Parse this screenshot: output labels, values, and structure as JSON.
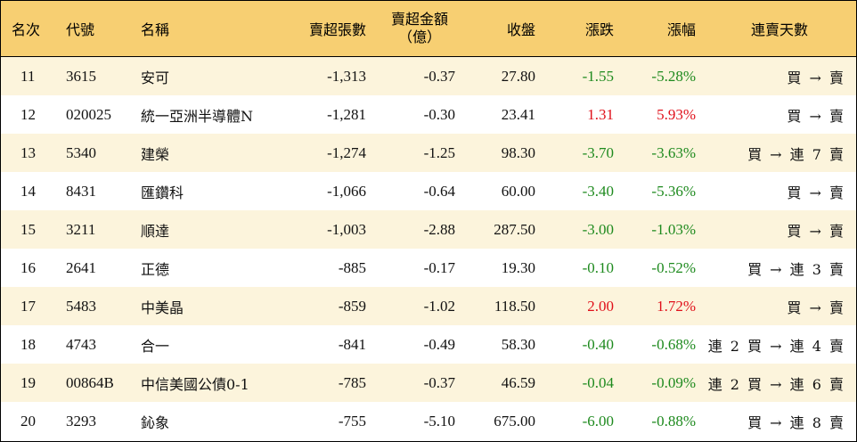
{
  "colors": {
    "header_bg": "#f7cf72",
    "odd_row_bg": "#fcf4dc",
    "even_row_bg": "#ffffff",
    "down": "#1e8a1e",
    "up": "#e0101a"
  },
  "header": {
    "rank": "名次",
    "code": "代號",
    "name": "名稱",
    "sell_lots": "賣超張數",
    "sell_amount_1": "賣超金額",
    "sell_amount_2": "（億）",
    "close": "收盤",
    "change": "漲跌",
    "pct": "漲幅",
    "days": "連賣天數"
  },
  "rows": [
    {
      "rank": "11",
      "code": "3615",
      "name": "安可",
      "sell_lots": "-1,313",
      "sell_amount": "-0.37",
      "close": "27.80",
      "change": "-1.55",
      "pct": "-5.28%",
      "days": "買 → 賣",
      "dir": "neg"
    },
    {
      "rank": "12",
      "code": "020025",
      "name": "統一亞洲半導體N",
      "sell_lots": "-1,281",
      "sell_amount": "-0.30",
      "close": "23.41",
      "change": "1.31",
      "pct": "5.93%",
      "days": "買 → 賣",
      "dir": "pos"
    },
    {
      "rank": "13",
      "code": "5340",
      "name": "建榮",
      "sell_lots": "-1,274",
      "sell_amount": "-1.25",
      "close": "98.30",
      "change": "-3.70",
      "pct": "-3.63%",
      "days": "買 → 連 7 賣",
      "dir": "neg"
    },
    {
      "rank": "14",
      "code": "8431",
      "name": "匯鑽科",
      "sell_lots": "-1,066",
      "sell_amount": "-0.64",
      "close": "60.00",
      "change": "-3.40",
      "pct": "-5.36%",
      "days": "買 → 賣",
      "dir": "neg"
    },
    {
      "rank": "15",
      "code": "3211",
      "name": "順達",
      "sell_lots": "-1,003",
      "sell_amount": "-2.88",
      "close": "287.50",
      "change": "-3.00",
      "pct": "-1.03%",
      "days": "買 → 賣",
      "dir": "neg"
    },
    {
      "rank": "16",
      "code": "2641",
      "name": "正德",
      "sell_lots": "-885",
      "sell_amount": "-0.17",
      "close": "19.30",
      "change": "-0.10",
      "pct": "-0.52%",
      "days": "買 → 連 3 賣",
      "dir": "neg"
    },
    {
      "rank": "17",
      "code": "5483",
      "name": "中美晶",
      "sell_lots": "-859",
      "sell_amount": "-1.02",
      "close": "118.50",
      "change": "2.00",
      "pct": "1.72%",
      "days": "買 → 賣",
      "dir": "pos"
    },
    {
      "rank": "18",
      "code": "4743",
      "name": "合一",
      "sell_lots": "-841",
      "sell_amount": "-0.49",
      "close": "58.30",
      "change": "-0.40",
      "pct": "-0.68%",
      "days": "連 2 買 → 連 4 賣",
      "dir": "neg"
    },
    {
      "rank": "19",
      "code": "00864B",
      "name": "中信美國公債0-1",
      "sell_lots": "-785",
      "sell_amount": "-0.37",
      "close": "46.59",
      "change": "-0.04",
      "pct": "-0.09%",
      "days": "連 2 買 → 連 6 賣",
      "dir": "neg"
    },
    {
      "rank": "20",
      "code": "3293",
      "name": "鈊象",
      "sell_lots": "-755",
      "sell_amount": "-5.10",
      "close": "675.00",
      "change": "-6.00",
      "pct": "-0.88%",
      "days": "買 → 連 8 賣",
      "dir": "neg"
    }
  ]
}
